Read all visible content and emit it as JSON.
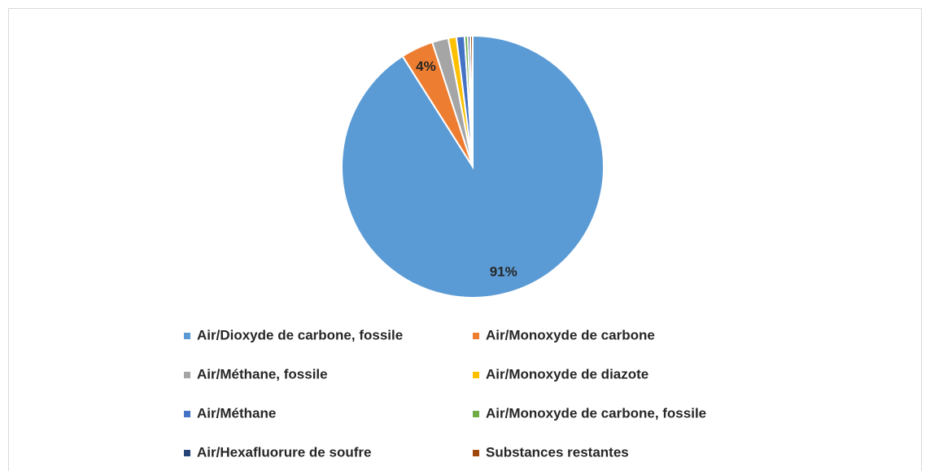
{
  "chart_data": {
    "type": "pie",
    "categories": [
      "Air/Dioxyde de carbone, fossile",
      "Air/Monoxyde de carbone",
      "Air/Méthane, fossile",
      "Air/Monoxyde de diazote",
      "Air/Méthane",
      "Air/Monoxyde de carbone, fossile",
      "Air/Hexafluorure de soufre",
      "Substances restantes"
    ],
    "values": [
      91,
      4,
      2,
      1,
      1,
      0.4,
      0.3,
      0.3
    ],
    "value_labels": [
      "91%",
      "4%",
      null,
      null,
      null,
      null,
      null,
      null
    ],
    "colors": [
      "#5b9bd5",
      "#ed7d31",
      "#a5a5a5",
      "#ffc000",
      "#4472c4",
      "#70ad47",
      "#264478",
      "#9e480e"
    ]
  }
}
